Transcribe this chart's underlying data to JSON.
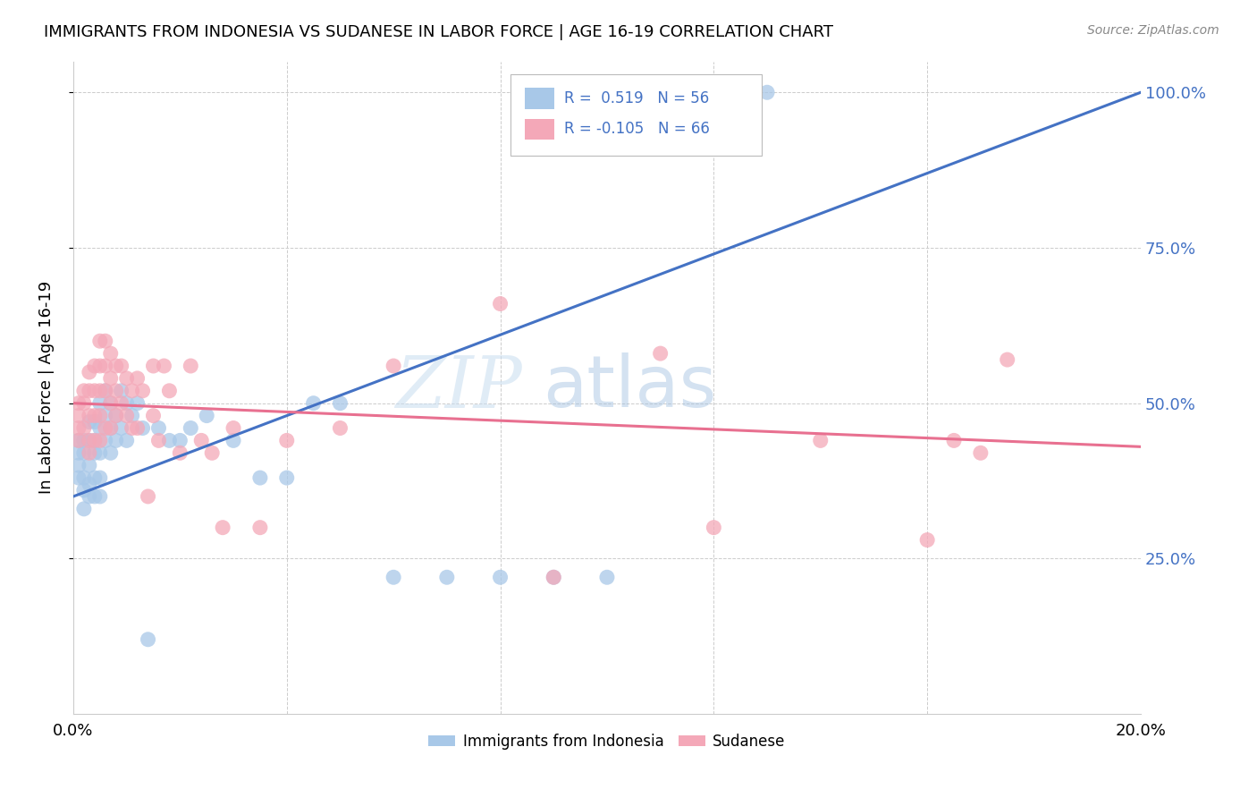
{
  "title": "IMMIGRANTS FROM INDONESIA VS SUDANESE IN LABOR FORCE | AGE 16-19 CORRELATION CHART",
  "source": "Source: ZipAtlas.com",
  "ylabel": "In Labor Force | Age 16-19",
  "r_indonesia": 0.519,
  "n_indonesia": 56,
  "r_sudanese": -0.105,
  "n_sudanese": 66,
  "xlim": [
    0.0,
    0.2
  ],
  "ylim": [
    0.0,
    1.05
  ],
  "yticks": [
    0.25,
    0.5,
    0.75,
    1.0
  ],
  "ytick_labels": [
    "25.0%",
    "50.0%",
    "75.0%",
    "100.0%"
  ],
  "color_indonesia": "#a8c8e8",
  "color_sudanese": "#f4a8b8",
  "line_color_indonesia": "#4472c4",
  "line_color_sudanese": "#e87090",
  "watermark_zip": "ZIP",
  "watermark_atlas": "atlas",
  "indonesia_x": [
    0.001,
    0.001,
    0.001,
    0.001,
    0.002,
    0.002,
    0.002,
    0.002,
    0.002,
    0.003,
    0.003,
    0.003,
    0.003,
    0.003,
    0.004,
    0.004,
    0.004,
    0.004,
    0.004,
    0.005,
    0.005,
    0.005,
    0.005,
    0.005,
    0.006,
    0.006,
    0.006,
    0.007,
    0.007,
    0.007,
    0.008,
    0.008,
    0.009,
    0.009,
    0.01,
    0.01,
    0.011,
    0.012,
    0.013,
    0.014,
    0.016,
    0.018,
    0.02,
    0.022,
    0.025,
    0.03,
    0.035,
    0.04,
    0.045,
    0.05,
    0.06,
    0.07,
    0.08,
    0.09,
    0.1,
    0.13
  ],
  "indonesia_y": [
    0.44,
    0.42,
    0.4,
    0.38,
    0.44,
    0.42,
    0.38,
    0.36,
    0.33,
    0.47,
    0.44,
    0.4,
    0.37,
    0.35,
    0.47,
    0.44,
    0.42,
    0.38,
    0.35,
    0.5,
    0.46,
    0.42,
    0.38,
    0.35,
    0.52,
    0.48,
    0.44,
    0.5,
    0.46,
    0.42,
    0.48,
    0.44,
    0.52,
    0.46,
    0.5,
    0.44,
    0.48,
    0.5,
    0.46,
    0.12,
    0.46,
    0.44,
    0.44,
    0.46,
    0.48,
    0.44,
    0.38,
    0.38,
    0.5,
    0.5,
    0.22,
    0.22,
    0.22,
    0.22,
    0.22,
    1.0
  ],
  "sudanese_x": [
    0.001,
    0.001,
    0.001,
    0.001,
    0.002,
    0.002,
    0.002,
    0.003,
    0.003,
    0.003,
    0.003,
    0.003,
    0.004,
    0.004,
    0.004,
    0.004,
    0.005,
    0.005,
    0.005,
    0.005,
    0.005,
    0.006,
    0.006,
    0.006,
    0.006,
    0.007,
    0.007,
    0.007,
    0.007,
    0.008,
    0.008,
    0.008,
    0.009,
    0.009,
    0.01,
    0.01,
    0.011,
    0.011,
    0.012,
    0.012,
    0.013,
    0.014,
    0.015,
    0.015,
    0.016,
    0.017,
    0.018,
    0.02,
    0.022,
    0.024,
    0.026,
    0.028,
    0.03,
    0.035,
    0.04,
    0.05,
    0.06,
    0.08,
    0.09,
    0.11,
    0.12,
    0.14,
    0.16,
    0.165,
    0.17,
    0.175
  ],
  "sudanese_y": [
    0.5,
    0.48,
    0.46,
    0.44,
    0.52,
    0.5,
    0.46,
    0.55,
    0.52,
    0.48,
    0.44,
    0.42,
    0.56,
    0.52,
    0.48,
    0.44,
    0.6,
    0.56,
    0.52,
    0.48,
    0.44,
    0.6,
    0.56,
    0.52,
    0.46,
    0.58,
    0.54,
    0.5,
    0.46,
    0.56,
    0.52,
    0.48,
    0.56,
    0.5,
    0.54,
    0.48,
    0.52,
    0.46,
    0.54,
    0.46,
    0.52,
    0.35,
    0.56,
    0.48,
    0.44,
    0.56,
    0.52,
    0.42,
    0.56,
    0.44,
    0.42,
    0.3,
    0.46,
    0.3,
    0.44,
    0.46,
    0.56,
    0.66,
    0.22,
    0.58,
    0.3,
    0.44,
    0.28,
    0.44,
    0.42,
    0.57
  ]
}
